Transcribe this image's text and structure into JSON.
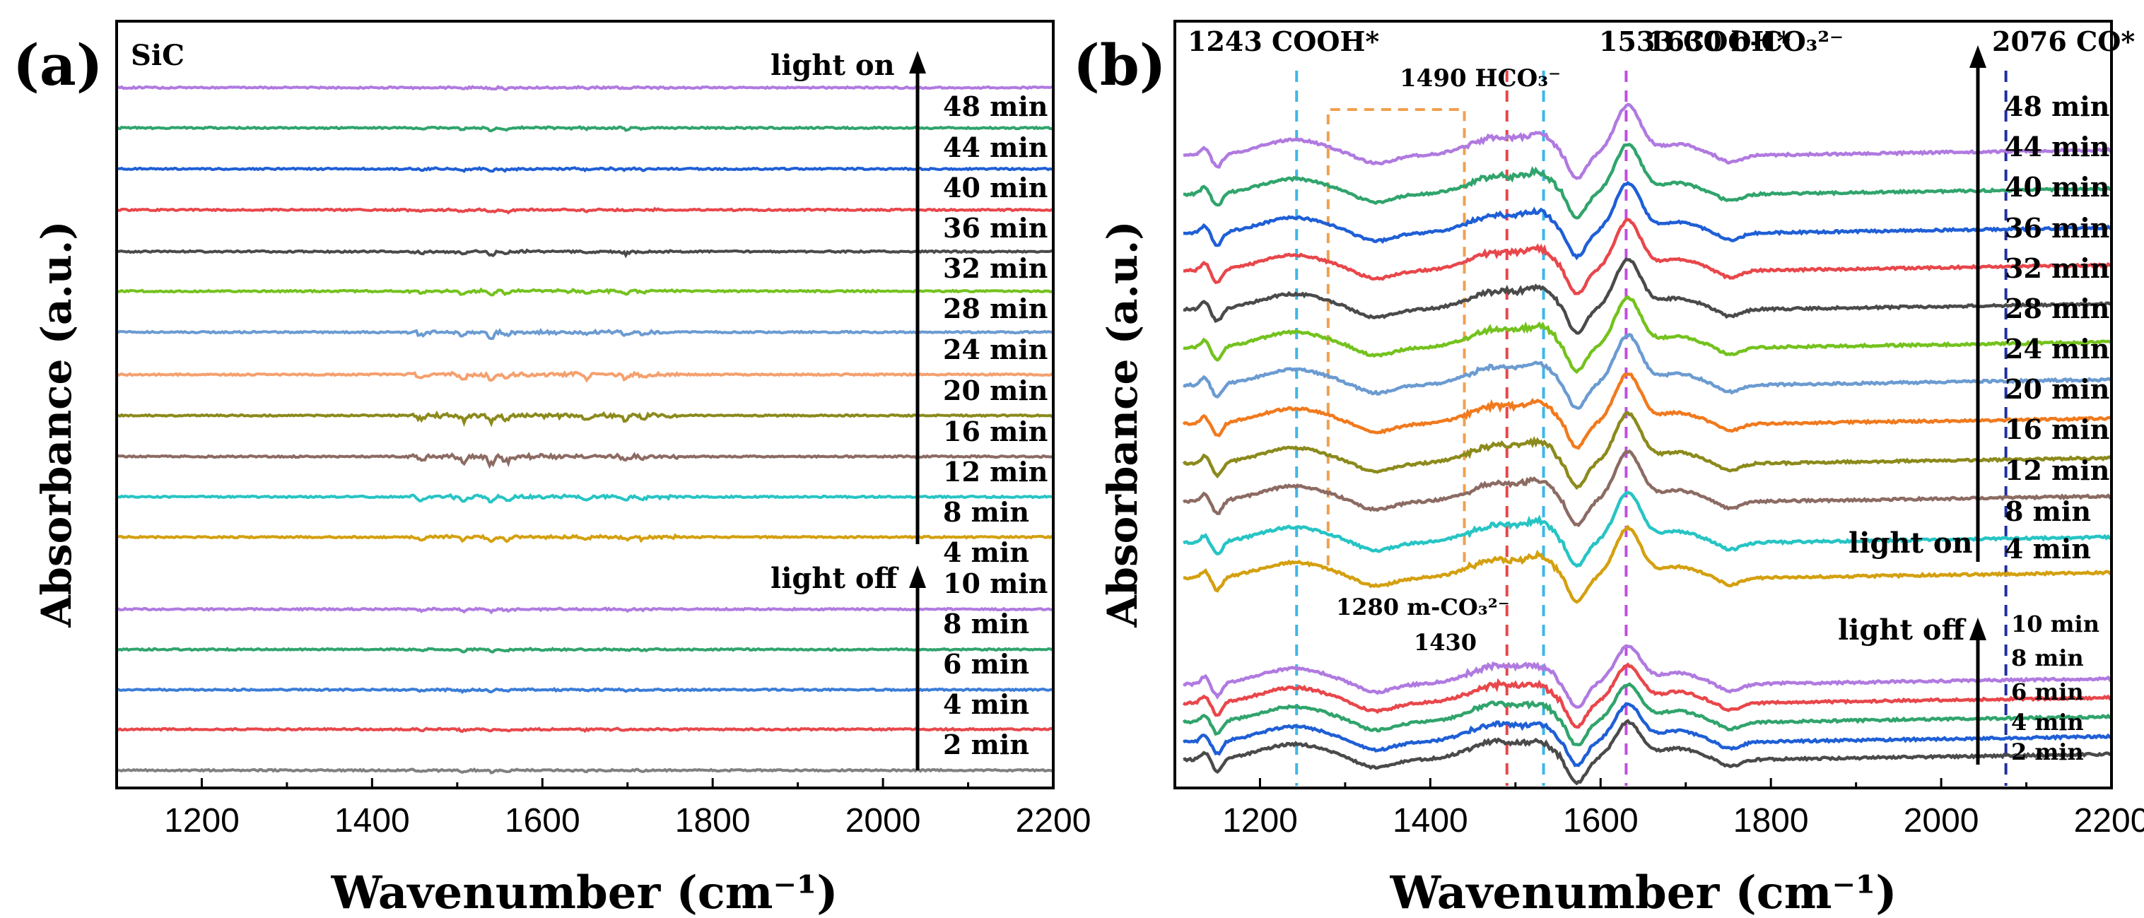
{
  "panels": [
    {
      "id": "a",
      "label": "(a)",
      "sample": "SiC",
      "xlabel": "Wavenumber (cm⁻¹)",
      "ylabel": "Absorbance (a.u.)",
      "xlim": [
        1100,
        2200
      ],
      "xticks": [
        1200,
        1400,
        1600,
        1800,
        2000,
        2200
      ],
      "light_on_label": "light on",
      "light_off_label": "light off",
      "light_on_times": [
        "4 min",
        "8 min",
        "12 min",
        "16 min",
        "20 min",
        "24 min",
        "28 min",
        "32 min",
        "36 min",
        "40 min",
        "44 min",
        "48 min"
      ],
      "light_off_times": [
        "2 min",
        "4 min",
        "6 min",
        "8 min",
        "10 min"
      ],
      "annotations": []
    },
    {
      "id": "b",
      "label": "(b)",
      "sample": "",
      "xlabel": "Wavenumber (cm⁻¹)",
      "ylabel": "Absorbance (a.u.)",
      "xlim": [
        1100,
        2200
      ],
      "xticks": [
        1200,
        1400,
        1600,
        1800,
        2000,
        2200
      ],
      "light_on_label": "light on",
      "light_off_label": "light off",
      "light_on_times": [
        "4 min",
        "8 min",
        "12 min",
        "16 min",
        "20 min",
        "24 min",
        "28 min",
        "32 min",
        "36 min",
        "40 min",
        "44 min",
        "48 min"
      ],
      "light_off_times": [
        "2 min",
        "4 min",
        "6 min",
        "8 min",
        "10 min"
      ],
      "annotations": [
        {
          "text": "1243 COOH*",
          "x": 1243
        },
        {
          "text": "1490 HCO₃⁻",
          "x": 1490
        },
        {
          "text": "1533 COOH*",
          "x": 1533
        },
        {
          "text": "1630 b-CO₃²⁻",
          "x": 1630
        },
        {
          "text": "2076 CO*",
          "x": 2076
        },
        {
          "text": "1280 m-CO₃²⁻",
          "x": 1280
        },
        {
          "text": "1430",
          "x": 1430
        }
      ]
    }
  ],
  "chart_data": [
    {
      "type": "line",
      "title": "(a) SiC",
      "xlabel": "Wavenumber (cm⁻¹)",
      "ylabel": "Absorbance (a.u.)",
      "xlim": [
        1100,
        2200
      ],
      "series_colors": {
        "2 min": "#808080",
        "4 min": "#e8474b",
        "6 min": "#3b7dd8",
        "8 min": "#30a46c",
        "10 min": "#b07ae0"
      },
      "light_on_colors": [
        "#d4a00f",
        "#27c4c4",
        "#8c6b63",
        "#8b8a1c",
        "#f5a06e",
        "#6b9bd1",
        "#74c21e",
        "#4a4a4a",
        "#e8474b",
        "#1f5fd6",
        "#30a46c",
        "#b07ae0"
      ],
      "light_off_colors": [
        "#808080",
        "#e8474b",
        "#3b7dd8",
        "#30a46c",
        "#b07ae0"
      ],
      "features": [
        {
          "x": 1458,
          "depth": 0.55
        },
        {
          "x": 1507,
          "depth": 0.8
        },
        {
          "x": 1540,
          "depth": 1.0
        },
        {
          "x": 1558,
          "depth": 0.7
        },
        {
          "x": 1652,
          "depth": 0.45
        },
        {
          "x": 1698,
          "depth": 0.55
        },
        {
          "x": 1718,
          "depth": 0.4
        }
      ]
    },
    {
      "type": "line",
      "title": "(b)",
      "xlabel": "Wavenumber (cm⁻¹)",
      "ylabel": "Absorbance (a.u.)",
      "xlim": [
        1100,
        2200
      ],
      "light_on_colors": [
        "#d4a00f",
        "#27c4c4",
        "#8c6b63",
        "#8b8a1c",
        "#f07a1e",
        "#6b9bd1",
        "#74c21e",
        "#4a4a4a",
        "#e8474b",
        "#1f5fd6",
        "#30a46c",
        "#b07ae0"
      ],
      "light_off_colors": [
        "#4a4a4a",
        "#1f5fd6",
        "#30a46c",
        "#e8474b",
        "#b07ae0"
      ],
      "reference_lines": [
        {
          "x": 1243,
          "color": "#3fb6e8"
        },
        {
          "x": 1490,
          "color": "#e8474b"
        },
        {
          "x": 1533,
          "color": "#3fb6e8"
        },
        {
          "x": 1630,
          "color": "#c04de0"
        },
        {
          "x": 2076,
          "color": "#1f2f9f"
        }
      ],
      "box": {
        "x_from": 1280,
        "x_to": 1440,
        "color": "#f0a050"
      },
      "peaks": [
        {
          "x": 1243,
          "height": 0.45
        },
        {
          "x": 1470,
          "height": 0.55
        },
        {
          "x": 1520,
          "height": 0.85
        },
        {
          "x": 1630,
          "height": 1.8
        }
      ]
    }
  ]
}
